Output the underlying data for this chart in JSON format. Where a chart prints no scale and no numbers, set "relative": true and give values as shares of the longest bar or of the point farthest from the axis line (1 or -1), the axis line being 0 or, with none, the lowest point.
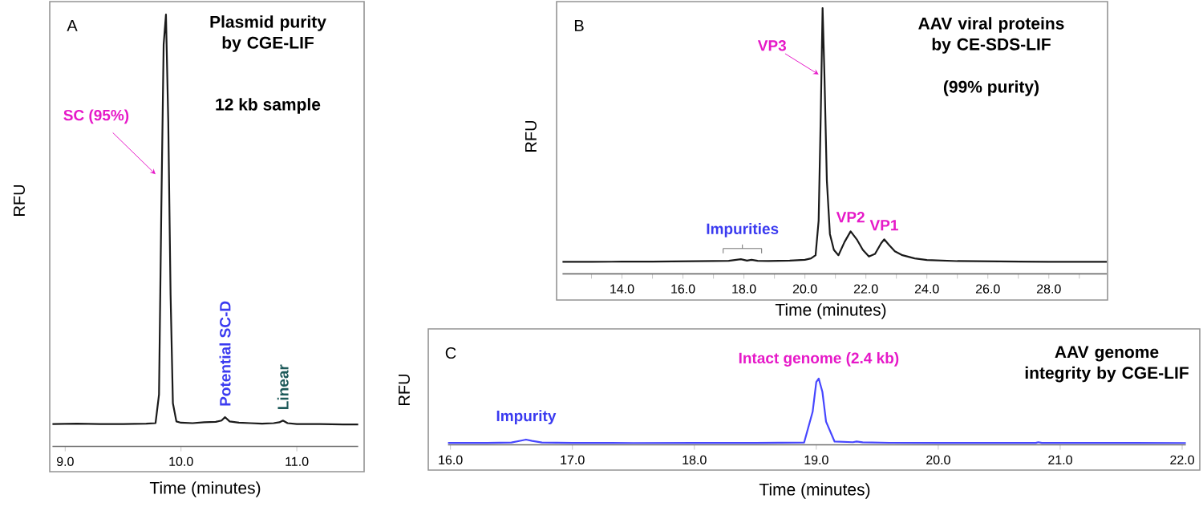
{
  "chart_data": [
    {
      "type": "line",
      "relative": true,
      "title": "Plasmid purity by CGE-LIF",
      "subtitle": "12 kb sample",
      "xlabel": "Time (minutes)",
      "ylabel": "RFU",
      "xlim": [
        8.89,
        11.53
      ],
      "xticks": [
        {
          "value": 9,
          "label": "9.0"
        },
        {
          "value": 10,
          "label": "10.0"
        },
        {
          "value": 11,
          "label": "11.0"
        }
      ],
      "annotations": [
        "A",
        {
          "text": "SC (95%)",
          "x": 9.78,
          "y": 0.63
        },
        {
          "text": "Potential SC-D",
          "x": 10.38,
          "y": 0.068
        },
        {
          "text": "Linear",
          "x": 10.88,
          "y": 0.06
        }
      ],
      "series": [
        {
          "color": "#1a1a1a",
          "x": [
            8.89,
            9.1,
            9.3,
            9.5,
            9.7,
            9.78,
            9.81,
            9.83,
            9.85,
            9.87,
            9.89,
            9.91,
            9.93,
            9.96,
            10.0,
            10.1,
            10.2,
            10.3,
            10.35,
            10.38,
            10.42,
            10.5,
            10.6,
            10.7,
            10.8,
            10.85,
            10.88,
            10.92,
            11.0,
            11.2,
            11.4,
            11.53
          ],
          "values": [
            0.052,
            0.053,
            0.052,
            0.052,
            0.053,
            0.054,
            0.12,
            0.55,
            0.93,
            1.0,
            0.75,
            0.35,
            0.1,
            0.058,
            0.055,
            0.054,
            0.056,
            0.057,
            0.06,
            0.068,
            0.058,
            0.055,
            0.054,
            0.053,
            0.054,
            0.056,
            0.06,
            0.054,
            0.052,
            0.052,
            0.051,
            0.051
          ]
        }
      ]
    },
    {
      "type": "line",
      "relative": true,
      "title": "AAV viral proteins by CE-SDS-LIF",
      "subtitle": "(99% purity)",
      "xlabel": "Time (minutes)",
      "ylabel": "RFU",
      "xlim": [
        12.05,
        29.9
      ],
      "xticks": [
        {
          "value": 13,
          "label": null
        },
        {
          "value": 14,
          "label": "14.0"
        },
        {
          "value": 15,
          "label": null
        },
        {
          "value": 16,
          "label": "16.0"
        },
        {
          "value": 17,
          "label": null
        },
        {
          "value": 18,
          "label": "18.0"
        },
        {
          "value": 19,
          "label": null
        },
        {
          "value": 20,
          "label": "20.0"
        },
        {
          "value": 21,
          "label": null
        },
        {
          "value": 22,
          "label": "22.0"
        },
        {
          "value": 23,
          "label": null
        },
        {
          "value": 24,
          "label": "24.0"
        },
        {
          "value": 25,
          "label": null
        },
        {
          "value": 26,
          "label": "26.0"
        },
        {
          "value": 27,
          "label": null
        },
        {
          "value": 28,
          "label": "28.0"
        },
        {
          "value": 29,
          "label": null
        }
      ],
      "annotations": [
        "B",
        {
          "text": "VP3",
          "x": 20.45,
          "y": 0.75
        },
        {
          "text": "VP2",
          "x": 21.5,
          "y": 0.16
        },
        {
          "text": "VP1",
          "x": 22.6,
          "y": 0.13
        },
        {
          "text": "Impurities",
          "x": 17.95,
          "y": 0.05
        }
      ],
      "series": [
        {
          "color": "#1a1a1a",
          "x": [
            12.05,
            13,
            14,
            15,
            16,
            17,
            17.5,
            17.9,
            18.1,
            18.25,
            18.45,
            18.8,
            19.5,
            20.0,
            20.2,
            20.35,
            20.45,
            20.52,
            20.58,
            20.64,
            20.72,
            20.82,
            20.95,
            21.1,
            21.3,
            21.5,
            21.7,
            21.9,
            22.1,
            22.3,
            22.5,
            22.6,
            22.75,
            22.95,
            23.2,
            23.6,
            24.0,
            25,
            26,
            27,
            28,
            29,
            29.9
          ],
          "values": [
            0.045,
            0.045,
            0.046,
            0.046,
            0.047,
            0.048,
            0.049,
            0.055,
            0.05,
            0.053,
            0.049,
            0.048,
            0.05,
            0.053,
            0.058,
            0.07,
            0.2,
            0.6,
            1.0,
            0.75,
            0.35,
            0.15,
            0.09,
            0.07,
            0.12,
            0.16,
            0.13,
            0.09,
            0.065,
            0.075,
            0.115,
            0.13,
            0.11,
            0.085,
            0.07,
            0.058,
            0.052,
            0.048,
            0.047,
            0.046,
            0.045,
            0.045,
            0.045
          ]
        }
      ]
    },
    {
      "type": "line",
      "relative": true,
      "title": "AAV genome integrity by CGE-LIF",
      "xlabel": "Time (minutes)",
      "ylabel": "RFU",
      "xlim": [
        15.98,
        22.03
      ],
      "xticks": [
        {
          "value": 16,
          "label": "16.0"
        },
        {
          "value": 17,
          "label": "17.0"
        },
        {
          "value": 18,
          "label": "18.0"
        },
        {
          "value": 19,
          "label": "19.0"
        },
        {
          "value": 20,
          "label": "20.0"
        },
        {
          "value": 21,
          "label": "21.0"
        },
        {
          "value": 22,
          "label": "22.0"
        }
      ],
      "annotations": [
        "C",
        {
          "text": "Intact genome (2.4 kb)",
          "x": 19.02,
          "y": 1.0
        },
        {
          "text": "Impurity",
          "x": 16.62,
          "y": 0.08
        }
      ],
      "series": [
        {
          "color": "#4646ff",
          "x": [
            15.98,
            16.3,
            16.5,
            16.58,
            16.62,
            16.67,
            16.75,
            17.0,
            17.5,
            18.0,
            18.5,
            18.9,
            18.97,
            19.0,
            19.02,
            19.05,
            19.08,
            19.15,
            19.3,
            19.33,
            19.38,
            19.6,
            20.0,
            20.4,
            20.8,
            20.82,
            20.85,
            21.2,
            21.6,
            22.03
          ],
          "values": [
            0.03,
            0.03,
            0.035,
            0.065,
            0.08,
            0.06,
            0.035,
            0.03,
            0.028,
            0.03,
            0.029,
            0.035,
            0.5,
            0.95,
            1.0,
            0.8,
            0.35,
            0.05,
            0.04,
            0.05,
            0.038,
            0.031,
            0.03,
            0.03,
            0.03,
            0.04,
            0.03,
            0.029,
            0.029,
            0.028
          ]
        }
      ]
    }
  ]
}
